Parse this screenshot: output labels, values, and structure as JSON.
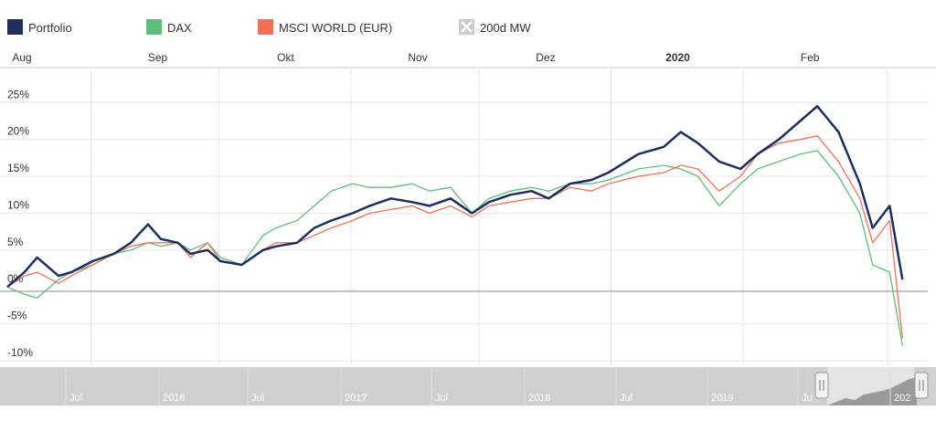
{
  "legend": [
    {
      "name": "Portfolio",
      "color": "#1e2e5e",
      "type": "solid"
    },
    {
      "name": "DAX",
      "color": "#5cbf7a",
      "type": "solid"
    },
    {
      "name": "MSCI WORLD (EUR)",
      "color": "#f07058",
      "type": "solid"
    },
    {
      "name": "200d MW",
      "color": "#bbbbbb",
      "type": "disabled"
    }
  ],
  "chart_data": {
    "type": "line",
    "x_range": [
      "2019-08-01",
      "2020-02-28"
    ],
    "x_ticks": [
      {
        "date": "2019-08-01",
        "label": "Aug",
        "bold": false
      },
      {
        "date": "2019-09-01",
        "label": "Sep",
        "bold": false
      },
      {
        "date": "2019-10-01",
        "label": "Okt",
        "bold": false
      },
      {
        "date": "2019-11-01",
        "label": "Nov",
        "bold": false
      },
      {
        "date": "2019-12-01",
        "label": "Dez",
        "bold": false
      },
      {
        "date": "2020-01-01",
        "label": "2020",
        "bold": true
      },
      {
        "date": "2020-02-01",
        "label": "Feb",
        "bold": false
      }
    ],
    "y_ticks": [
      {
        "value": 25,
        "label": "25%"
      },
      {
        "value": 20,
        "label": "20%"
      },
      {
        "value": 15,
        "label": "15%"
      },
      {
        "value": 10,
        "label": "10%"
      },
      {
        "value": 5,
        "label": "5%"
      },
      {
        "value": 0,
        "label": "0%"
      },
      {
        "value": -5,
        "label": "-5%"
      },
      {
        "value": -10,
        "label": "-10%"
      }
    ],
    "ylim": [
      -10,
      29
    ],
    "series": [
      {
        "name": "Portfolio",
        "color": "#1e2e5e",
        "x": [
          "2019-08-01",
          "2019-08-05",
          "2019-08-08",
          "2019-08-13",
          "2019-08-16",
          "2019-08-21",
          "2019-08-26",
          "2019-08-30",
          "2019-09-03",
          "2019-09-06",
          "2019-09-10",
          "2019-09-13",
          "2019-09-17",
          "2019-09-20",
          "2019-09-25",
          "2019-09-30",
          "2019-10-03",
          "2019-10-08",
          "2019-10-12",
          "2019-10-16",
          "2019-10-21",
          "2019-10-25",
          "2019-10-30",
          "2019-11-04",
          "2019-11-08",
          "2019-11-13",
          "2019-11-18",
          "2019-11-22",
          "2019-11-27",
          "2019-12-02",
          "2019-12-06",
          "2019-12-11",
          "2019-12-16",
          "2019-12-20",
          "2019-12-27",
          "2020-01-02",
          "2020-01-06",
          "2020-01-10",
          "2020-01-15",
          "2020-01-20",
          "2020-01-24",
          "2020-01-29",
          "2020-02-03",
          "2020-02-07",
          "2020-02-12",
          "2020-02-17",
          "2020-02-20",
          "2020-02-24",
          "2020-02-27"
        ],
        "values": [
          0,
          2,
          4,
          1.5,
          2,
          3.5,
          4.5,
          6,
          8.5,
          6.5,
          6,
          4.5,
          5,
          3.5,
          3,
          5,
          5.5,
          6,
          8,
          9,
          10,
          11,
          12,
          11.5,
          11,
          12,
          10,
          11.5,
          12.5,
          13,
          12,
          14,
          14.5,
          15.5,
          18,
          19,
          21,
          19.5,
          17,
          16,
          18,
          20,
          22.5,
          24.5,
          21,
          14,
          8,
          11,
          1
        ]
      },
      {
        "name": "DAX",
        "color": "#5cbf7a",
        "x": [
          "2019-08-01",
          "2019-08-05",
          "2019-08-08",
          "2019-08-13",
          "2019-08-16",
          "2019-08-21",
          "2019-08-26",
          "2019-08-30",
          "2019-09-03",
          "2019-09-06",
          "2019-09-10",
          "2019-09-13",
          "2019-09-17",
          "2019-09-20",
          "2019-09-25",
          "2019-09-30",
          "2019-10-03",
          "2019-10-08",
          "2019-10-12",
          "2019-10-16",
          "2019-10-21",
          "2019-10-25",
          "2019-10-30",
          "2019-11-04",
          "2019-11-08",
          "2019-11-13",
          "2019-11-18",
          "2019-11-22",
          "2019-11-27",
          "2019-12-02",
          "2019-12-06",
          "2019-12-11",
          "2019-12-16",
          "2019-12-20",
          "2019-12-27",
          "2020-01-02",
          "2020-01-06",
          "2020-01-10",
          "2020-01-15",
          "2020-01-20",
          "2020-01-24",
          "2020-01-29",
          "2020-02-03",
          "2020-02-07",
          "2020-02-12",
          "2020-02-17",
          "2020-02-20",
          "2020-02-24",
          "2020-02-27"
        ],
        "values": [
          0,
          -1,
          -1.5,
          1,
          2,
          3,
          4.5,
          5,
          6,
          5.5,
          6,
          5,
          6,
          4,
          3,
          7,
          8,
          9,
          11,
          13,
          14,
          13.5,
          13.5,
          14,
          13,
          13.5,
          10,
          12,
          13,
          13.5,
          13,
          14,
          14,
          14.5,
          16,
          16.5,
          16,
          15,
          11,
          14,
          16,
          17,
          18,
          18.5,
          15,
          10,
          3,
          2,
          -8
        ]
      },
      {
        "name": "MSCI WORLD (EUR)",
        "color": "#f07058",
        "x": [
          "2019-08-01",
          "2019-08-05",
          "2019-08-08",
          "2019-08-13",
          "2019-08-16",
          "2019-08-21",
          "2019-08-26",
          "2019-08-30",
          "2019-09-03",
          "2019-09-06",
          "2019-09-10",
          "2019-09-13",
          "2019-09-17",
          "2019-09-20",
          "2019-09-25",
          "2019-09-30",
          "2019-10-03",
          "2019-10-08",
          "2019-10-12",
          "2019-10-16",
          "2019-10-21",
          "2019-10-25",
          "2019-10-30",
          "2019-11-04",
          "2019-11-08",
          "2019-11-13",
          "2019-11-18",
          "2019-11-22",
          "2019-11-27",
          "2019-12-02",
          "2019-12-06",
          "2019-12-11",
          "2019-12-16",
          "2019-12-20",
          "2019-12-27",
          "2020-01-02",
          "2020-01-06",
          "2020-01-10",
          "2020-01-15",
          "2020-01-20",
          "2020-01-24",
          "2020-01-29",
          "2020-02-03",
          "2020-02-07",
          "2020-02-12",
          "2020-02-17",
          "2020-02-20",
          "2020-02-24",
          "2020-02-27"
        ],
        "values": [
          0,
          1.5,
          2,
          0.5,
          1.5,
          3,
          4.5,
          5.5,
          6,
          6,
          6,
          4,
          6,
          3.5,
          3,
          5,
          6,
          6,
          7,
          8,
          9,
          10,
          10.5,
          11,
          10,
          11,
          9.5,
          11,
          11.5,
          12,
          12,
          13.5,
          13,
          14,
          15,
          15.5,
          16.5,
          16,
          13,
          15,
          18,
          19.5,
          20,
          20.5,
          17,
          12,
          6,
          9,
          -7
        ]
      }
    ]
  },
  "navigator": {
    "labels": [
      "Jul",
      "2016",
      "Jul",
      "2017",
      "Jul",
      "2018",
      "Jul",
      "2019",
      "Ju",
      "202"
    ]
  }
}
